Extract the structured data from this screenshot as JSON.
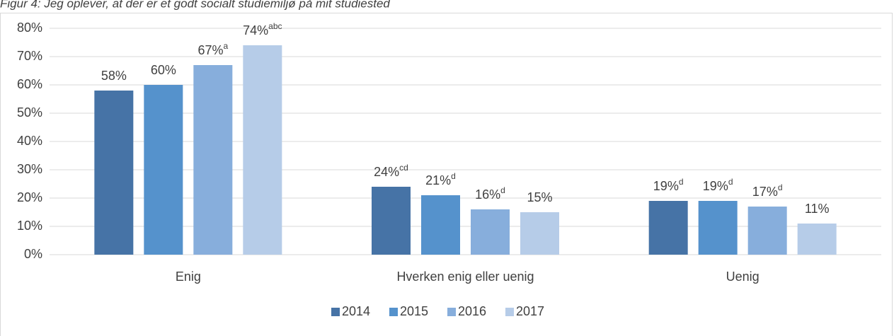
{
  "chart_data": {
    "type": "bar",
    "title": "Figur 4: Jeg oplever, at der er et godt socialt studiemiljø på mit studiested",
    "categories": [
      "Enig",
      "Hverken enig eller uenig",
      "Uenig"
    ],
    "series": [
      {
        "name": "2014",
        "color": "#4673a6",
        "values": [
          58,
          24,
          19
        ],
        "value_labels": [
          "58%",
          "24%",
          "19%"
        ],
        "value_notes": [
          null,
          "cd",
          "d"
        ]
      },
      {
        "name": "2015",
        "color": "#5592cc",
        "values": [
          60,
          21,
          19
        ],
        "value_labels": [
          "60%",
          "21%",
          "19%"
        ],
        "value_notes": [
          null,
          "d",
          "d"
        ]
      },
      {
        "name": "2016",
        "color": "#87aedc",
        "values": [
          67,
          16,
          17
        ],
        "value_labels": [
          "67%",
          "16%",
          "17%"
        ],
        "value_notes": [
          "a",
          "d",
          "d"
        ]
      },
      {
        "name": "2017",
        "color": "#b6cce8",
        "values": [
          74,
          15,
          11
        ],
        "value_labels": [
          "74%",
          "15%",
          "11%"
        ],
        "value_notes": [
          "abc",
          null,
          null
        ]
      }
    ],
    "ylim": [
      0,
      80
    ],
    "yticks": [
      {
        "value": 0,
        "label": "0%"
      },
      {
        "value": 10,
        "label": "10%"
      },
      {
        "value": 20,
        "label": "20%"
      },
      {
        "value": 30,
        "label": "30%"
      },
      {
        "value": 40,
        "label": "40%"
      },
      {
        "value": 50,
        "label": "50%"
      },
      {
        "value": 60,
        "label": "60%"
      },
      {
        "value": 70,
        "label": "70%"
      },
      {
        "value": 80,
        "label": "80%"
      }
    ],
    "grid": true,
    "legend": "bottom"
  }
}
